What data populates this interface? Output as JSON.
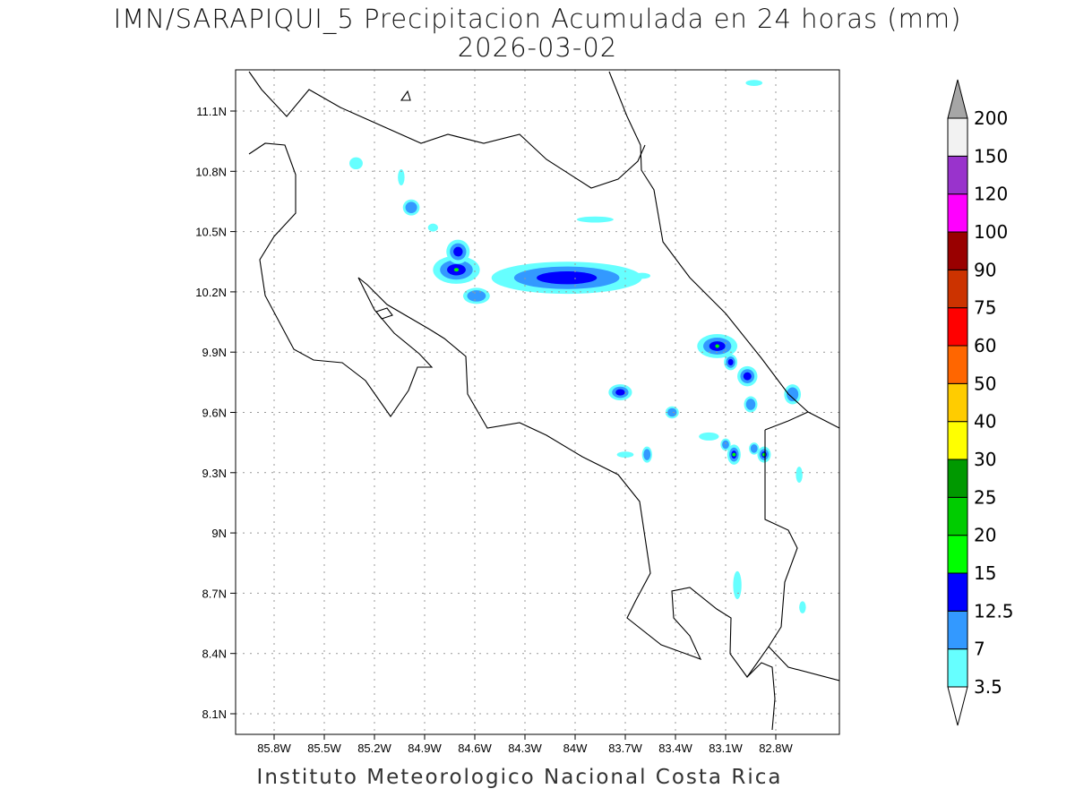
{
  "title": "IMN/SARAPIQUI_5 Precipitacion Acumulada en 24 horas (mm)",
  "date": "2026-03-02",
  "footer": "Instituto Meteorologico Nacional Costa Rica",
  "lon_ticks": [
    "85.8W",
    "85.5W",
    "85.2W",
    "84.9W",
    "84.6W",
    "84.3W",
    "84W",
    "83.7W",
    "83.4W",
    "83.1W",
    "82.8W"
  ],
  "lat_ticks": [
    "11.1N",
    "10.8N",
    "10.5N",
    "10.2N",
    "9.9N",
    "9.6N",
    "9.3N",
    "9N",
    "8.7N",
    "8.4N",
    "8.1N"
  ],
  "colorbar": {
    "labels": [
      "3.5",
      "7",
      "12.5",
      "15",
      "20",
      "25",
      "30",
      "40",
      "50",
      "60",
      "75",
      "90",
      "100",
      "120",
      "150",
      "200"
    ],
    "colors": [
      "#66ffff",
      "#3399ff",
      "#0000ff",
      "#00ff00",
      "#00cc00",
      "#009900",
      "#ffff00",
      "#ffcc00",
      "#ff6600",
      "#ff0000",
      "#cc3300",
      "#990000",
      "#ff00ff",
      "#9933cc",
      "#f2f2f2"
    ],
    "over_color": "#a6a6a6",
    "under_color": "#ffffff"
  },
  "precip_cells": [
    {
      "lon": -84.71,
      "lat": 10.31,
      "rx": 0.14,
      "ry": 0.07,
      "level": 3
    },
    {
      "lon": -84.7,
      "lat": 10.4,
      "rx": 0.07,
      "ry": 0.06,
      "level": 2
    },
    {
      "lon": -84.59,
      "lat": 10.18,
      "rx": 0.08,
      "ry": 0.04,
      "level": 1
    },
    {
      "lon": -84.05,
      "lat": 10.27,
      "rx": 0.45,
      "ry": 0.08,
      "level": 2
    },
    {
      "lon": -83.15,
      "lat": 9.93,
      "rx": 0.12,
      "ry": 0.06,
      "level": 3
    },
    {
      "lon": -83.07,
      "lat": 9.85,
      "rx": 0.04,
      "ry": 0.04,
      "level": 2
    },
    {
      "lon": -82.97,
      "lat": 9.78,
      "rx": 0.06,
      "ry": 0.05,
      "level": 2
    },
    {
      "lon": -82.95,
      "lat": 9.64,
      "rx": 0.04,
      "ry": 0.04,
      "level": 1
    },
    {
      "lon": -82.7,
      "lat": 9.69,
      "rx": 0.05,
      "ry": 0.05,
      "level": 1
    },
    {
      "lon": -83.73,
      "lat": 9.7,
      "rx": 0.07,
      "ry": 0.04,
      "level": 2
    },
    {
      "lon": -83.05,
      "lat": 9.39,
      "rx": 0.04,
      "ry": 0.05,
      "level": 3
    },
    {
      "lon": -82.87,
      "lat": 9.39,
      "rx": 0.04,
      "ry": 0.04,
      "level": 3
    },
    {
      "lon": -82.93,
      "lat": 9.42,
      "rx": 0.03,
      "ry": 0.03,
      "level": 1
    },
    {
      "lon": -83.1,
      "lat": 9.44,
      "rx": 0.03,
      "ry": 0.03,
      "level": 1
    },
    {
      "lon": -84.98,
      "lat": 10.62,
      "rx": 0.05,
      "ry": 0.04,
      "level": 1
    },
    {
      "lon": -85.04,
      "lat": 10.77,
      "rx": 0.02,
      "ry": 0.04,
      "level": 0
    },
    {
      "lon": -83.42,
      "lat": 9.6,
      "rx": 0.04,
      "ry": 0.03,
      "level": 1
    },
    {
      "lon": -83.57,
      "lat": 9.39,
      "rx": 0.03,
      "ry": 0.04,
      "level": 1
    },
    {
      "lon": -83.88,
      "lat": 10.56,
      "rx": 0.11,
      "ry": 0.015,
      "level": 0
    },
    {
      "lon": -85.31,
      "lat": 10.84,
      "rx": 0.04,
      "ry": 0.03,
      "level": 0
    },
    {
      "lon": -83.03,
      "lat": 8.74,
      "rx": 0.025,
      "ry": 0.07,
      "level": 0
    },
    {
      "lon": -82.66,
      "lat": 9.29,
      "rx": 0.02,
      "ry": 0.04,
      "level": 0
    },
    {
      "lon": -82.64,
      "lat": 8.63,
      "rx": 0.02,
      "ry": 0.03,
      "level": 0
    },
    {
      "lon": -83.2,
      "lat": 9.48,
      "rx": 0.06,
      "ry": 0.02,
      "level": 0
    },
    {
      "lon": -83.7,
      "lat": 9.39,
      "rx": 0.05,
      "ry": 0.015,
      "level": 0
    },
    {
      "lon": -83.6,
      "lat": 10.28,
      "rx": 0.05,
      "ry": 0.015,
      "level": 0
    },
    {
      "lon": -84.85,
      "lat": 10.52,
      "rx": 0.03,
      "ry": 0.02,
      "level": 0
    },
    {
      "lon": -82.93,
      "lat": 11.24,
      "rx": 0.05,
      "ry": 0.015,
      "level": 0
    }
  ]
}
